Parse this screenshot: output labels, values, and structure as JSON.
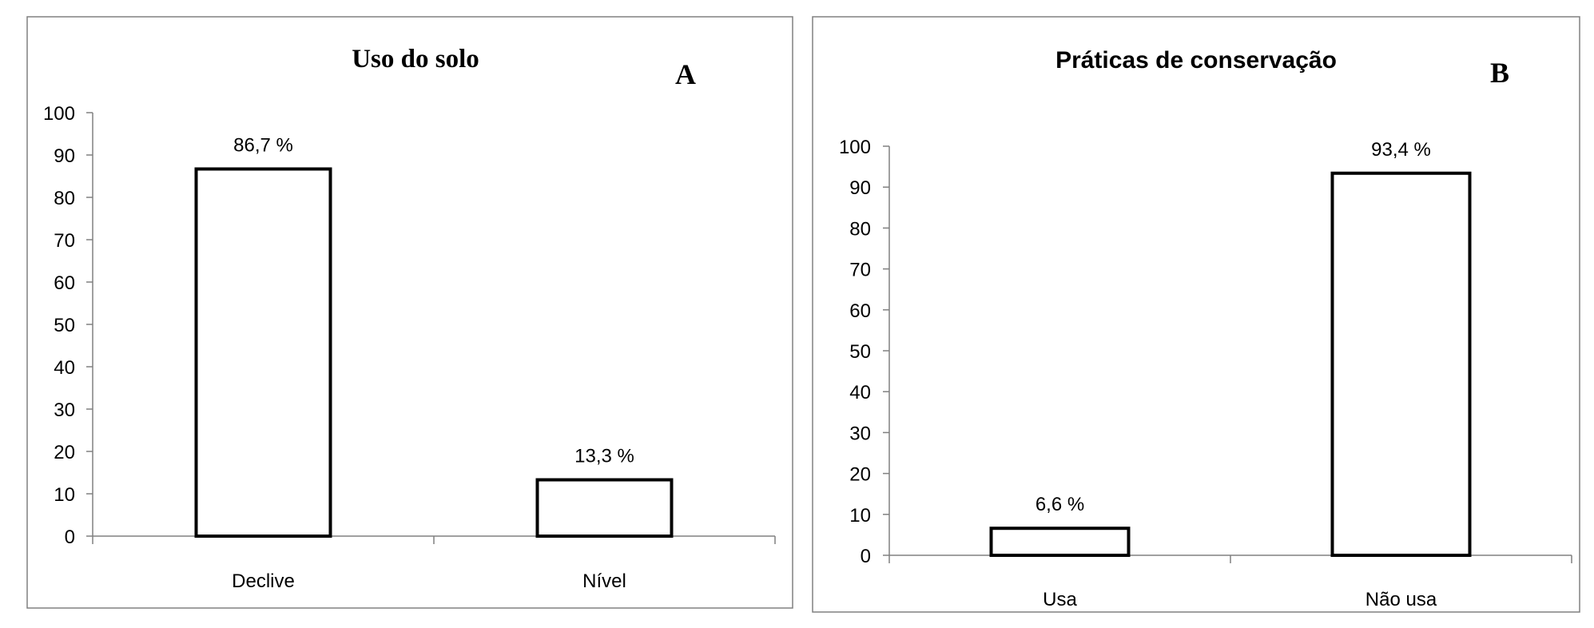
{
  "chart_data": [
    {
      "type": "bar",
      "title": "Uso do solo",
      "panel_letter": "A",
      "categories": [
        "Declive",
        "Nível"
      ],
      "values": [
        86.7,
        13.3
      ],
      "data_labels": [
        "86,7 %",
        "13,3 %"
      ],
      "ylim": [
        0,
        100
      ],
      "yticks": [
        0,
        10,
        20,
        30,
        40,
        50,
        60,
        70,
        80,
        90,
        100
      ],
      "xlabel": "",
      "ylabel": "",
      "grid": false,
      "legend": "none"
    },
    {
      "type": "bar",
      "title": "Práticas de conservação",
      "panel_letter": "B",
      "categories": [
        "Usa",
        "Não usa"
      ],
      "values": [
        6.6,
        93.4
      ],
      "data_labels": [
        "6,6 %",
        "93,4 %"
      ],
      "ylim": [
        0,
        100
      ],
      "yticks": [
        0,
        10,
        20,
        30,
        40,
        50,
        60,
        70,
        80,
        90,
        100
      ],
      "xlabel": "",
      "ylabel": "",
      "grid": false,
      "legend": "none"
    }
  ]
}
